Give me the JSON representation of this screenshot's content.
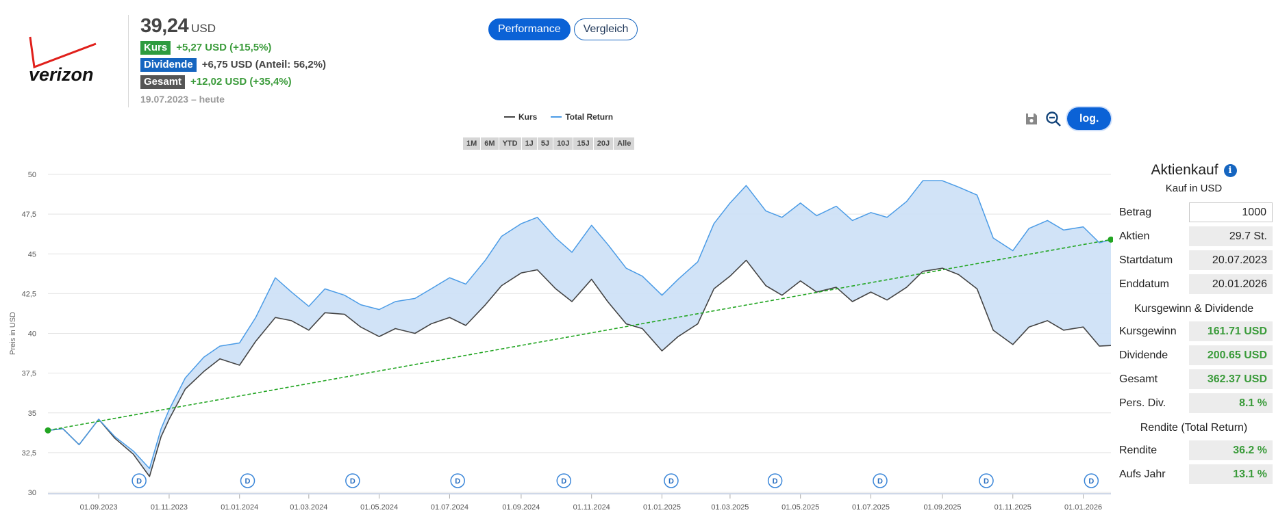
{
  "header": {
    "price": "39,24",
    "price_unit": "USD",
    "stats": [
      {
        "badge": "Kurs",
        "badge_color": "#2e9b3f",
        "value": "+5,27 USD (+15,5%)",
        "value_color": "#3a9b3a"
      },
      {
        "badge": "Dividende",
        "badge_color": "#1565c0",
        "value": "+6,75 USD (Anteil: 56,2%)",
        "value_color": "#444444"
      },
      {
        "badge": "Gesamt",
        "badge_color": "#555555",
        "value": "+12,02 USD (+35,4%)",
        "value_color": "#3a9b3a"
      }
    ],
    "period": "19.07.2023 – heute"
  },
  "logo": {
    "text": "verizon",
    "accent": "#e0201b"
  },
  "mode_tabs": [
    {
      "label": "Performance",
      "active": true
    },
    {
      "label": "Vergleich",
      "active": false
    }
  ],
  "legend": [
    {
      "label": "Kurs",
      "color": "#444444"
    },
    {
      "label": "Total Return",
      "color": "#4a9be6"
    }
  ],
  "ranges": [
    "1M",
    "6M",
    "YTD",
    "1J",
    "5J",
    "10J",
    "15J",
    "20J",
    "Alle"
  ],
  "tools": {
    "save_icon": "floppy-disk-icon",
    "zoom_icon": "zoom-out-icon",
    "log_label": "log."
  },
  "chart_data": {
    "type": "line",
    "ylabel": "Preis in USD",
    "ylim": [
      30,
      50
    ],
    "y_ticks": [
      "50",
      "47,5",
      "45",
      "42,5",
      "40",
      "37,5",
      "35",
      "32,5",
      "30"
    ],
    "y_tick_values": [
      50,
      47.5,
      45,
      42.5,
      40,
      37.5,
      35,
      32.5,
      30
    ],
    "x_range": [
      "2023-07-19",
      "2026-01-25"
    ],
    "x_ticks": [
      "01.09.2023",
      "01.11.2023",
      "01.01.2024",
      "01.03.2024",
      "01.05.2024",
      "01.07.2024",
      "01.09.2024",
      "01.11.2024",
      "01.01.2025",
      "01.03.2025",
      "01.05.2025",
      "01.07.2025",
      "01.09.2025",
      "01.11.2025",
      "01.01.2026"
    ],
    "x_tick_dates": [
      "2023-09-01",
      "2023-11-01",
      "2024-01-01",
      "2024-03-01",
      "2024-05-01",
      "2024-07-01",
      "2024-09-01",
      "2024-11-01",
      "2025-01-01",
      "2025-03-01",
      "2025-05-01",
      "2025-07-01",
      "2025-09-01",
      "2025-11-01",
      "2026-01-01"
    ],
    "series": [
      {
        "name": "Kurs",
        "color": "#444444",
        "points": [
          [
            "2023-07-19",
            33.9
          ],
          [
            "2023-08-01",
            34.0
          ],
          [
            "2023-08-15",
            33.0
          ],
          [
            "2023-09-01",
            34.6
          ],
          [
            "2023-09-15",
            33.4
          ],
          [
            "2023-10-01",
            32.4
          ],
          [
            "2023-10-15",
            31.0
          ],
          [
            "2023-10-25",
            33.5
          ],
          [
            "2023-11-01",
            34.6
          ],
          [
            "2023-11-15",
            36.5
          ],
          [
            "2023-12-01",
            37.6
          ],
          [
            "2023-12-15",
            38.4
          ],
          [
            "2024-01-01",
            38.0
          ],
          [
            "2024-01-15",
            39.5
          ],
          [
            "2024-02-01",
            41.0
          ],
          [
            "2024-02-15",
            40.8
          ],
          [
            "2024-03-01",
            40.2
          ],
          [
            "2024-03-15",
            41.3
          ],
          [
            "2024-04-01",
            41.2
          ],
          [
            "2024-04-15",
            40.4
          ],
          [
            "2024-05-01",
            39.8
          ],
          [
            "2024-05-15",
            40.3
          ],
          [
            "2024-06-01",
            40.0
          ],
          [
            "2024-06-15",
            40.6
          ],
          [
            "2024-07-01",
            41.0
          ],
          [
            "2024-07-15",
            40.5
          ],
          [
            "2024-08-01",
            41.8
          ],
          [
            "2024-08-15",
            43.0
          ],
          [
            "2024-09-01",
            43.8
          ],
          [
            "2024-09-15",
            44.0
          ],
          [
            "2024-10-01",
            42.8
          ],
          [
            "2024-10-15",
            42.0
          ],
          [
            "2024-11-01",
            43.4
          ],
          [
            "2024-11-15",
            42.0
          ],
          [
            "2024-12-01",
            40.6
          ],
          [
            "2024-12-15",
            40.3
          ],
          [
            "2025-01-01",
            38.9
          ],
          [
            "2025-01-15",
            39.8
          ],
          [
            "2025-02-01",
            40.6
          ],
          [
            "2025-02-15",
            42.8
          ],
          [
            "2025-03-01",
            43.6
          ],
          [
            "2025-03-15",
            44.6
          ],
          [
            "2025-04-01",
            43.0
          ],
          [
            "2025-04-15",
            42.4
          ],
          [
            "2025-05-01",
            43.3
          ],
          [
            "2025-05-15",
            42.6
          ],
          [
            "2025-06-01",
            42.9
          ],
          [
            "2025-06-15",
            42.0
          ],
          [
            "2025-07-01",
            42.6
          ],
          [
            "2025-07-15",
            42.1
          ],
          [
            "2025-08-01",
            42.9
          ],
          [
            "2025-08-15",
            43.9
          ],
          [
            "2025-09-01",
            44.1
          ],
          [
            "2025-09-15",
            43.7
          ],
          [
            "2025-10-01",
            42.8
          ],
          [
            "2025-10-15",
            40.2
          ],
          [
            "2025-11-01",
            39.3
          ],
          [
            "2025-11-15",
            40.4
          ],
          [
            "2025-12-01",
            40.8
          ],
          [
            "2025-12-15",
            40.2
          ],
          [
            "2026-01-01",
            40.4
          ],
          [
            "2026-01-15",
            39.2
          ],
          [
            "2026-01-25",
            39.24
          ]
        ]
      },
      {
        "name": "Total Return",
        "color": "#4a9be6",
        "points": [
          [
            "2023-07-19",
            33.9
          ],
          [
            "2023-08-01",
            34.0
          ],
          [
            "2023-08-15",
            33.0
          ],
          [
            "2023-09-01",
            34.6
          ],
          [
            "2023-09-15",
            33.5
          ],
          [
            "2023-10-01",
            32.6
          ],
          [
            "2023-10-15",
            31.5
          ],
          [
            "2023-10-25",
            34.0
          ],
          [
            "2023-11-01",
            35.2
          ],
          [
            "2023-11-15",
            37.2
          ],
          [
            "2023-12-01",
            38.5
          ],
          [
            "2023-12-15",
            39.2
          ],
          [
            "2024-01-01",
            39.4
          ],
          [
            "2024-01-15",
            41.0
          ],
          [
            "2024-02-01",
            43.5
          ],
          [
            "2024-02-15",
            42.6
          ],
          [
            "2024-03-01",
            41.7
          ],
          [
            "2024-03-15",
            42.8
          ],
          [
            "2024-04-01",
            42.4
          ],
          [
            "2024-04-15",
            41.8
          ],
          [
            "2024-05-01",
            41.5
          ],
          [
            "2024-05-15",
            42.0
          ],
          [
            "2024-06-01",
            42.2
          ],
          [
            "2024-06-15",
            42.8
          ],
          [
            "2024-07-01",
            43.5
          ],
          [
            "2024-07-15",
            43.1
          ],
          [
            "2024-08-01",
            44.6
          ],
          [
            "2024-08-15",
            46.1
          ],
          [
            "2024-09-01",
            46.9
          ],
          [
            "2024-09-15",
            47.3
          ],
          [
            "2024-10-01",
            46.0
          ],
          [
            "2024-10-15",
            45.1
          ],
          [
            "2024-11-01",
            46.8
          ],
          [
            "2024-11-15",
            45.6
          ],
          [
            "2024-12-01",
            44.1
          ],
          [
            "2024-12-15",
            43.6
          ],
          [
            "2025-01-01",
            42.4
          ],
          [
            "2025-01-15",
            43.4
          ],
          [
            "2025-02-01",
            44.5
          ],
          [
            "2025-02-15",
            46.9
          ],
          [
            "2025-03-01",
            48.2
          ],
          [
            "2025-03-15",
            49.3
          ],
          [
            "2025-04-01",
            47.7
          ],
          [
            "2025-04-15",
            47.3
          ],
          [
            "2025-05-01",
            48.2
          ],
          [
            "2025-05-15",
            47.4
          ],
          [
            "2025-06-01",
            48.0
          ],
          [
            "2025-06-15",
            47.1
          ],
          [
            "2025-07-01",
            47.6
          ],
          [
            "2025-07-15",
            47.3
          ],
          [
            "2025-08-01",
            48.3
          ],
          [
            "2025-08-15",
            49.6
          ],
          [
            "2025-09-01",
            49.6
          ],
          [
            "2025-09-15",
            49.2
          ],
          [
            "2025-10-01",
            48.7
          ],
          [
            "2025-10-15",
            46.0
          ],
          [
            "2025-11-01",
            45.2
          ],
          [
            "2025-11-15",
            46.6
          ],
          [
            "2025-12-01",
            47.1
          ],
          [
            "2025-12-15",
            46.5
          ],
          [
            "2026-01-01",
            46.7
          ],
          [
            "2026-01-15",
            45.7
          ],
          [
            "2026-01-25",
            45.9
          ]
        ]
      }
    ],
    "trendline": {
      "color": "#22a522",
      "from": [
        "2023-07-19",
        33.9
      ],
      "to": [
        "2026-01-25",
        45.9
      ]
    },
    "dividend_markers": {
      "label": "D",
      "dates": [
        "2023-10-06",
        "2024-01-08",
        "2024-04-08",
        "2024-07-08",
        "2024-10-08",
        "2025-01-09",
        "2025-04-09",
        "2025-07-09",
        "2025-10-09",
        "2026-01-08"
      ]
    },
    "grid": true
  },
  "panel": {
    "title": "Aktienkauf",
    "info_icon": "info-icon",
    "subtitle": "Kauf in USD",
    "rows": [
      {
        "label": "Betrag",
        "value": "1000",
        "input": true
      },
      {
        "label": "Aktien",
        "value": "29.7 St."
      },
      {
        "label": "Startdatum",
        "value": "20.07.2023"
      },
      {
        "label": "Enddatum",
        "value": "20.01.2026"
      }
    ],
    "section2": "Kursgewinn & Dividende",
    "rows2": [
      {
        "label": "Kursgewinn",
        "value": "161.71 USD"
      },
      {
        "label": "Dividende",
        "value": "200.65 USD"
      },
      {
        "label": "Gesamt",
        "value": "362.37 USD"
      },
      {
        "label": "Pers. Div.",
        "value": "8.1 %"
      }
    ],
    "section3": "Rendite (Total Return)",
    "rows3": [
      {
        "label": "Rendite",
        "value": "36.2 %"
      },
      {
        "label": "Aufs Jahr",
        "value": "13.1 %"
      }
    ]
  }
}
